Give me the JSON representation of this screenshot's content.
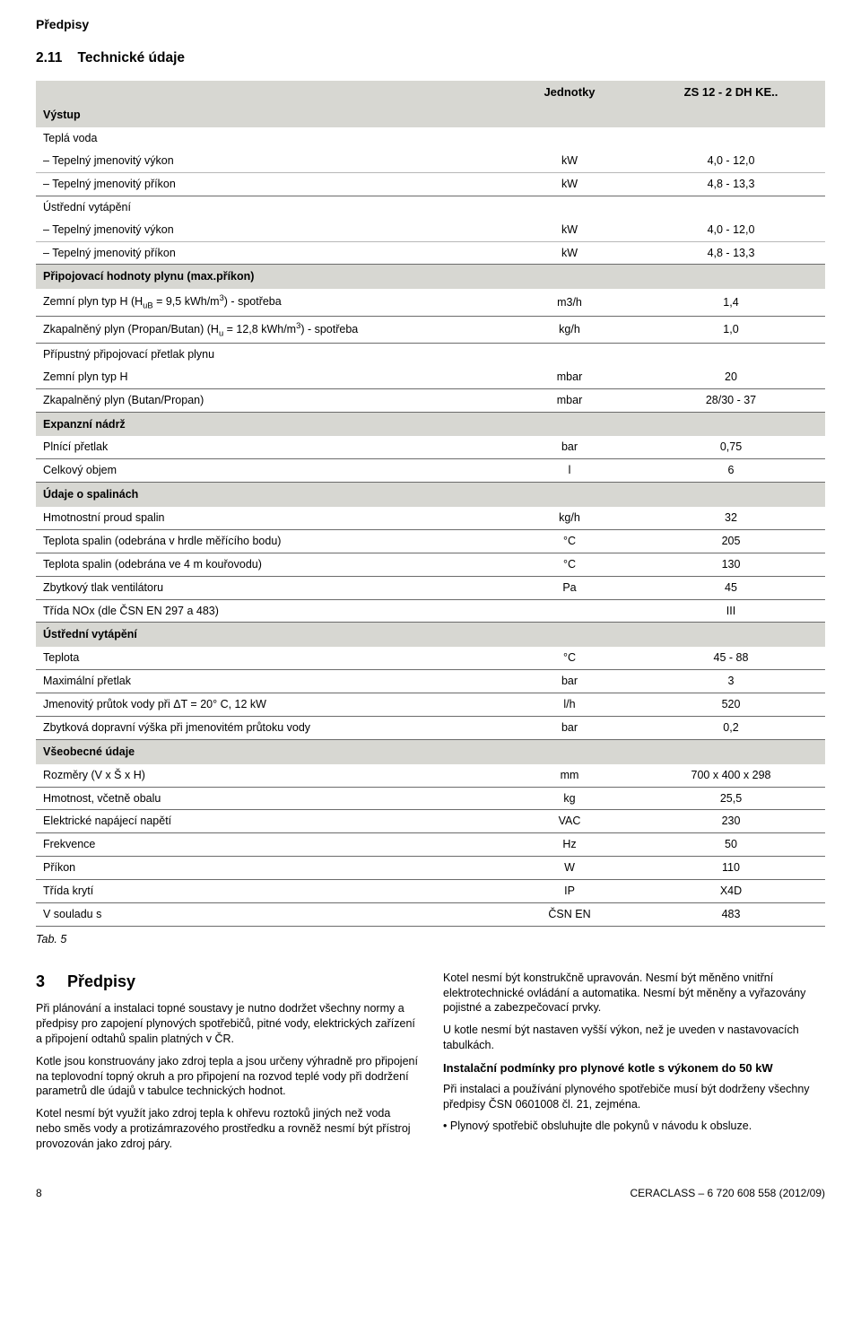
{
  "page": {
    "header": "Předpisy",
    "section_number": "2.11",
    "section_title": "Technické údaje"
  },
  "table": {
    "head": {
      "param": "",
      "unit": "Jednotky",
      "model": "ZS 12 - 2 DH KE.."
    },
    "sections": [
      {
        "title": "Výstup",
        "rows": [
          {
            "label": "Teplá voda",
            "kind": "subhead"
          },
          {
            "label": "– Tepelný jmenovitý výkon",
            "unit": "kW",
            "val": "4,0 - 12,0",
            "kind": "inner"
          },
          {
            "label": "– Tepelný jmenovitý příkon",
            "unit": "kW",
            "val": "4,8 - 13,3",
            "kind": "data"
          },
          {
            "label": "Ústřední vytápění",
            "kind": "subhead"
          },
          {
            "label": "– Tepelný jmenovitý výkon",
            "unit": "kW",
            "val": "4,0 - 12,0",
            "kind": "inner"
          },
          {
            "label": "– Tepelný jmenovitý příkon",
            "unit": "kW",
            "val": "4,8 - 13,3",
            "kind": "data"
          }
        ]
      },
      {
        "title": "Připojovací hodnoty plynu (max.příkon)",
        "rows": [
          {
            "label_html": "Zemní plyn typ H (H<sub>uB</sub> = 9,5 kWh/m<sup>3</sup>) - spotřeba",
            "unit": "m3/h",
            "val": "1,4",
            "kind": "data"
          },
          {
            "label_html": "Zkapalněný plyn (Propan/Butan) (H<sub>u</sub> = 12,8 kWh/m<sup>3</sup>) - spotřeba",
            "unit": "kg/h",
            "val": "1,0",
            "kind": "data"
          },
          {
            "label": "Přípustný připojovací přetlak plynu",
            "kind": "subhead"
          },
          {
            "label": "Zemní plyn typ H",
            "unit": "mbar",
            "val": "20",
            "kind": "data"
          },
          {
            "label": "Zkapalněný plyn (Butan/Propan)",
            "unit": "mbar",
            "val": "28/30 - 37",
            "kind": "data"
          }
        ]
      },
      {
        "title": "Expanzní nádrž",
        "rows": [
          {
            "label": "Plnící přetlak",
            "unit": "bar",
            "val": "0,75",
            "kind": "data"
          },
          {
            "label": "Celkový objem",
            "unit": "l",
            "val": "6",
            "kind": "data"
          }
        ]
      },
      {
        "title": "Údaje o spalinách",
        "rows": [
          {
            "label": "Hmotnostní proud spalin",
            "unit": "kg/h",
            "val": "32",
            "kind": "data"
          },
          {
            "label": "Teplota spalin (odebrána v hrdle měřícího bodu)",
            "unit": "°C",
            "val": "205",
            "kind": "data"
          },
          {
            "label": "Teplota spalin (odebrána ve 4 m kouřovodu)",
            "unit": "°C",
            "val": "130",
            "kind": "data"
          },
          {
            "label": "Zbytkový tlak ventilátoru",
            "unit": "Pa",
            "val": "45",
            "kind": "data"
          },
          {
            "label": "Třída NOx (dle ČSN EN 297 a 483)",
            "unit": "",
            "val": "III",
            "kind": "data"
          }
        ]
      },
      {
        "title": "Ústřední vytápění",
        "rows": [
          {
            "label": "Teplota",
            "unit": "°C",
            "val": "45 - 88",
            "kind": "data"
          },
          {
            "label": "Maximální přetlak",
            "unit": "bar",
            "val": "3",
            "kind": "data"
          },
          {
            "label": "Jmenovitý průtok vody při ΔT = 20° C, 12 kW",
            "unit": "l/h",
            "val": "520",
            "kind": "data"
          },
          {
            "label": "Zbytková dopravní výška při jmenovitém průtoku vody",
            "unit": "bar",
            "val": "0,2",
            "kind": "data"
          }
        ]
      },
      {
        "title": "Všeobecné údaje",
        "rows": [
          {
            "label": "Rozměry (V x Š x H)",
            "unit": "mm",
            "val": "700 x 400 x 298",
            "kind": "data"
          },
          {
            "label": "Hmotnost, včetně obalu",
            "unit": "kg",
            "val": "25,5",
            "kind": "data"
          },
          {
            "label": "Elektrické napájecí napětí",
            "unit": "VAC",
            "val": "230",
            "kind": "data"
          },
          {
            "label": "Frekvence",
            "unit": "Hz",
            "val": "50",
            "kind": "data"
          },
          {
            "label": "Příkon",
            "unit": "W",
            "val": "110",
            "kind": "data"
          },
          {
            "label": "Třída krytí",
            "unit": "IP",
            "val": "X4D",
            "kind": "data"
          },
          {
            "label": "V souladu s",
            "unit": "ČSN EN",
            "val": "483",
            "kind": "data"
          }
        ]
      }
    ],
    "caption": "Tab. 5"
  },
  "predpisy": {
    "number": "3",
    "title": "Předpisy",
    "left": [
      "Při plánování a instalaci topné soustavy je nutno dodržet všechny normy a předpisy pro zapojení plynových spotřebičů, pitné vody, elektrických zařízení a připojení odtahů spalin platných v ČR.",
      "Kotle jsou konstruovány jako zdroj tepla a jsou určeny výhradně pro připojení na teplovodní topný okruh a pro připojení na rozvod teplé vody při dodržení parametrů dle údajů v tabulce technických hodnot.",
      "Kotel nesmí být využít jako zdroj tepla k ohřevu roztoků jiných než voda nebo směs vody a protizámrazového prostředku a rovněž nesmí být přístroj provozován jako zdroj páry."
    ],
    "right_paras": [
      "Kotel nesmí být konstrukčně upravován. Nesmí být měněno vnitřní elektrotechnické ovládání a automatika. Nesmí být měněny a vyřazovány pojistné a zabezpečovací prvky.",
      "U kotle nesmí být nastaven vyšší výkon, než je uveden v nastavovacích tabulkách."
    ],
    "right_heading": "Instalační podmínky pro plynové kotle s výkonem do 50 kW",
    "right_after": "Při instalaci a používání plynového spotřebiče musí být dodrženy všechny předpisy ČSN 0601008 čl. 21, zejména.",
    "bullet": "Plynový spotřebič obsluhujte dle pokynů v návodu k obsluze."
  },
  "footer": {
    "page": "8",
    "doc": "CERACLASS – 6 720 608 558 (2012/09)"
  }
}
